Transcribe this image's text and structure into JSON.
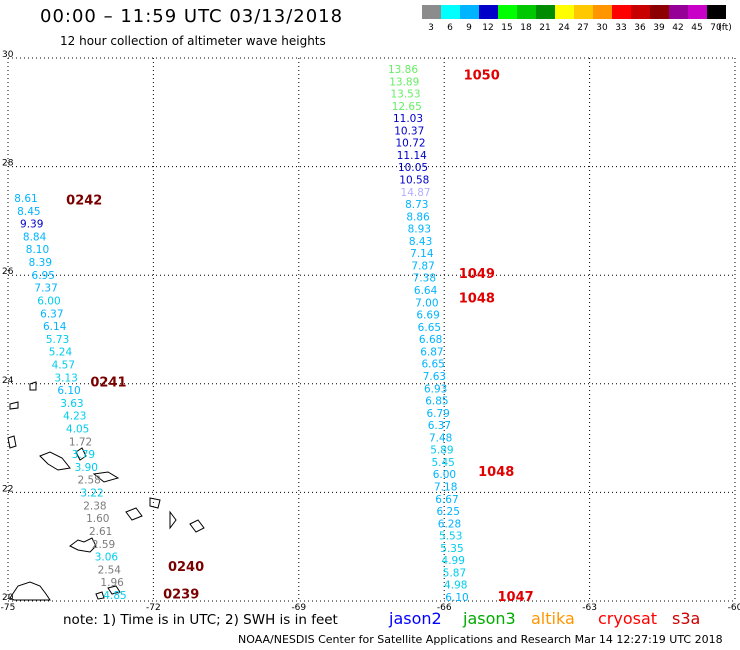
{
  "header": {
    "title": "00:00 – 11:59 UTC 03/13/2018",
    "subtitle": "12 hour collection of altimeter wave heights"
  },
  "legend": {
    "swatches": [
      {
        "color": "#8c8c8c",
        "label": "3"
      },
      {
        "color": "#00ffff",
        "label": "6"
      },
      {
        "color": "#00b4ff",
        "label": "9"
      },
      {
        "color": "#0000c8",
        "label": "12"
      },
      {
        "color": "#00ff00",
        "label": "15"
      },
      {
        "color": "#00c800",
        "label": "18"
      },
      {
        "color": "#008c00",
        "label": "21"
      },
      {
        "color": "#ffff00",
        "label": "24"
      },
      {
        "color": "#ffc800",
        "label": "27"
      },
      {
        "color": "#ff9600",
        "label": "30"
      },
      {
        "color": "#ff0000",
        "label": "33"
      },
      {
        "color": "#c80000",
        "label": "36"
      },
      {
        "color": "#8c0000",
        "label": "39"
      },
      {
        "color": "#960096",
        "label": "42"
      },
      {
        "color": "#c800c8",
        "label": "45"
      },
      {
        "color": "#000000",
        "label": "70"
      }
    ],
    "unit": "(ft)"
  },
  "axes": {
    "lat_labels": [
      "30",
      "28",
      "26",
      "24",
      "22",
      "20"
    ],
    "lon_labels": [
      "-75",
      "-72",
      "-69",
      "-66",
      "-63",
      "-60"
    ]
  },
  "map": {
    "track_labels": [
      {
        "text": "0242",
        "lon": -73.8,
        "lat": 27.3
      },
      {
        "text": "0241",
        "lon": -73.3,
        "lat": 23.95
      },
      {
        "text": "0240",
        "lon": -71.7,
        "lat": 20.55
      },
      {
        "text": "0239",
        "lon": -71.8,
        "lat": 20.05
      },
      {
        "text": "1050",
        "lon": -65.6,
        "lat": 29.6
      },
      {
        "text": "1049",
        "lon": -65.7,
        "lat": 25.95
      },
      {
        "text": "1048",
        "lon": -65.7,
        "lat": 25.5
      },
      {
        "text": "1048",
        "lon": -65.3,
        "lat": 22.3
      },
      {
        "text": "1047",
        "lon": -64.9,
        "lat": 20.0
      }
    ],
    "west_track": [
      {
        "v": "8.61",
        "c": "#00b4ff"
      },
      {
        "v": "8.45",
        "c": "#00b4ff"
      },
      {
        "v": "9.39",
        "c": "#0000c8"
      },
      {
        "v": "8.84",
        "c": "#00b4ff"
      },
      {
        "v": "8.10",
        "c": "#00b4ff"
      },
      {
        "v": "8.39",
        "c": "#00b4ff"
      },
      {
        "v": "6.95",
        "c": "#00b4ff"
      },
      {
        "v": "7.37",
        "c": "#00b4ff"
      },
      {
        "v": "6.00",
        "c": "#00ccee"
      },
      {
        "v": "6.37",
        "c": "#00b4ff"
      },
      {
        "v": "6.14",
        "c": "#00b4ff"
      },
      {
        "v": "5.73",
        "c": "#00ccee"
      },
      {
        "v": "5.24",
        "c": "#00ccee"
      },
      {
        "v": "4.57",
        "c": "#00ccee"
      },
      {
        "v": "3.13",
        "c": "#00ccee"
      },
      {
        "v": "6.10",
        "c": "#00b4ff"
      },
      {
        "v": "3.63",
        "c": "#00ccee"
      },
      {
        "v": "4.23",
        "c": "#00ccee"
      },
      {
        "v": "4.05",
        "c": "#00ccee"
      },
      {
        "v": "1.72",
        "c": "#7c7c7c"
      },
      {
        "v": "3.79",
        "c": "#00ccee"
      },
      {
        "v": "3.90",
        "c": "#00ccee"
      },
      {
        "v": "2.58",
        "c": "#7c7c7c"
      },
      {
        "v": "3.22",
        "c": "#00ccee"
      },
      {
        "v": "2.38",
        "c": "#7c7c7c"
      },
      {
        "v": "1.60",
        "c": "#7c7c7c"
      },
      {
        "v": "2.61",
        "c": "#7c7c7c"
      },
      {
        "v": "2.59",
        "c": "#7c7c7c"
      },
      {
        "v": "3.06",
        "c": "#00ccee"
      },
      {
        "v": "2.54",
        "c": "#7c7c7c"
      },
      {
        "v": "1.96",
        "c": "#7c7c7c"
      },
      {
        "v": "4.85",
        "c": "#00ccee"
      }
    ],
    "east_track": [
      {
        "v": "13.86",
        "c": "#66ee66"
      },
      {
        "v": "13.89",
        "c": "#66ee66"
      },
      {
        "v": "13.53",
        "c": "#66ee66"
      },
      {
        "v": "12.65",
        "c": "#66ee66"
      },
      {
        "v": "11.03",
        "c": "#0000c8"
      },
      {
        "v": "10.37",
        "c": "#0000c8"
      },
      {
        "v": "10.72",
        "c": "#0000c8"
      },
      {
        "v": "11.14",
        "c": "#0000c8"
      },
      {
        "v": "10.05",
        "c": "#0000c8"
      },
      {
        "v": "10.58",
        "c": "#0000c8"
      },
      {
        "v": "14.87",
        "c": "#b0b0ff"
      },
      {
        "v": "8.73",
        "c": "#00b4ff"
      },
      {
        "v": "8.86",
        "c": "#00b4ff"
      },
      {
        "v": "8.93",
        "c": "#00b4ff"
      },
      {
        "v": "8.43",
        "c": "#00b4ff"
      },
      {
        "v": "7.14",
        "c": "#00b4ff"
      },
      {
        "v": "7.87",
        "c": "#00b4ff"
      },
      {
        "v": "7.38",
        "c": "#00b4ff"
      },
      {
        "v": "6.64",
        "c": "#00b4ff"
      },
      {
        "v": "7.00",
        "c": "#00b4ff"
      },
      {
        "v": "6.69",
        "c": "#00b4ff"
      },
      {
        "v": "6.65",
        "c": "#00b4ff"
      },
      {
        "v": "6.68",
        "c": "#00b4ff"
      },
      {
        "v": "6.87",
        "c": "#00b4ff"
      },
      {
        "v": "6.65",
        "c": "#00b4ff"
      },
      {
        "v": "7.63",
        "c": "#00b4ff"
      },
      {
        "v": "6.93",
        "c": "#00b4ff"
      },
      {
        "v": "6.85",
        "c": "#00b4ff"
      },
      {
        "v": "6.79",
        "c": "#00b4ff"
      },
      {
        "v": "6.37",
        "c": "#00b4ff"
      },
      {
        "v": "7.48",
        "c": "#00b4ff"
      },
      {
        "v": "5.89",
        "c": "#00ccee"
      },
      {
        "v": "5.45",
        "c": "#00ccee"
      },
      {
        "v": "6.00",
        "c": "#00b4ff"
      },
      {
        "v": "7.18",
        "c": "#00b4ff"
      },
      {
        "v": "6.67",
        "c": "#00b4ff"
      },
      {
        "v": "6.25",
        "c": "#00b4ff"
      },
      {
        "v": "6.28",
        "c": "#00b4ff"
      },
      {
        "v": "5.53",
        "c": "#00ccee"
      },
      {
        "v": "5.35",
        "c": "#00ccee"
      },
      {
        "v": "4.99",
        "c": "#00ccee"
      },
      {
        "v": "5.87",
        "c": "#00ccee"
      },
      {
        "v": "4.98",
        "c": "#00ccee"
      },
      {
        "v": "6.10",
        "c": "#00b4ff"
      }
    ]
  },
  "footer": {
    "note": "note:  1) Time is in UTC;  2) SWH is in feet",
    "satellites": [
      {
        "name": "jason2",
        "color": "#0000ff"
      },
      {
        "name": "jason3",
        "color": "#00aa00"
      },
      {
        "name": "altika",
        "color": "#ff9600"
      },
      {
        "name": "cryosat",
        "color": "#ff0000"
      },
      {
        "name": "s3a",
        "color": "#cc0000"
      }
    ],
    "credit": "NOAA/NESDIS Center for Satellite Applications and Research    Mar 14 12:27:19 UTC 2018"
  }
}
